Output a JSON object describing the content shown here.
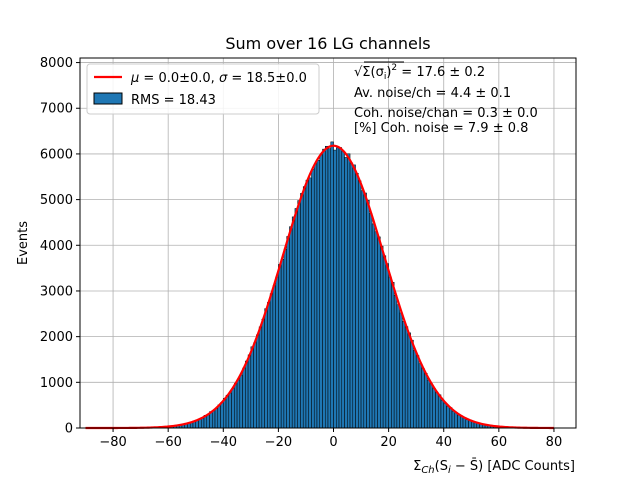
{
  "chart_data": {
    "type": "bar",
    "title": "Sum over 16 LG channels",
    "ylabel": "Events",
    "xlabel": {
      "prefix": "Σ",
      "sub": "Ch",
      "expr": "(S",
      "sub2": "i",
      "rest": " − S̄) [ADC Counts]"
    },
    "xlim": [
      -92,
      88
    ],
    "ylim": [
      0,
      8100
    ],
    "xticks": [
      -80,
      -60,
      -40,
      -20,
      0,
      20,
      40,
      60,
      80
    ],
    "xtick_labels": [
      "−80",
      "−60",
      "−40",
      "−20",
      "0",
      "20",
      "40",
      "60",
      "80"
    ],
    "yticks": [
      0,
      1000,
      2000,
      3000,
      4000,
      5000,
      6000,
      7000,
      8000
    ],
    "ytick_labels": [
      "0",
      "1000",
      "2000",
      "3000",
      "4000",
      "5000",
      "6000",
      "7000",
      "8000"
    ],
    "grid": true,
    "legend_placement": "top-left",
    "histogram": {
      "name": "RMS = 18.43",
      "color": "#1f77b4",
      "edge_color": "#000000",
      "bin_width": 1,
      "bin_range": [
        -90,
        80
      ],
      "peak": 6180,
      "mean": 0.0,
      "sigma": 18.5
    },
    "fit": {
      "name": {
        "mu_sym": "μ",
        "mu_val": " = 0.0±0.0, ",
        "sigma_sym": "σ",
        "sigma_val": " = 18.5±0.0"
      },
      "color": "#ff0000",
      "mean": 0.0,
      "sigma": 18.5,
      "amplitude": 6180,
      "x_range": [
        -90,
        80
      ]
    },
    "annotations": {
      "line1": {
        "sqrt": "√",
        "body": "Σ(σ",
        "sub": "i",
        "close": ")",
        "sup": "2",
        "value": " = 17.6 ± 0.2"
      },
      "line2": "Av. noise/ch  = 4.4 ± 0.1",
      "line3": "Coh. noise/chan  = 0.3 ± 0.0",
      "line4": "[%] Coh. noise  = 7.9 ± 0.8"
    }
  }
}
